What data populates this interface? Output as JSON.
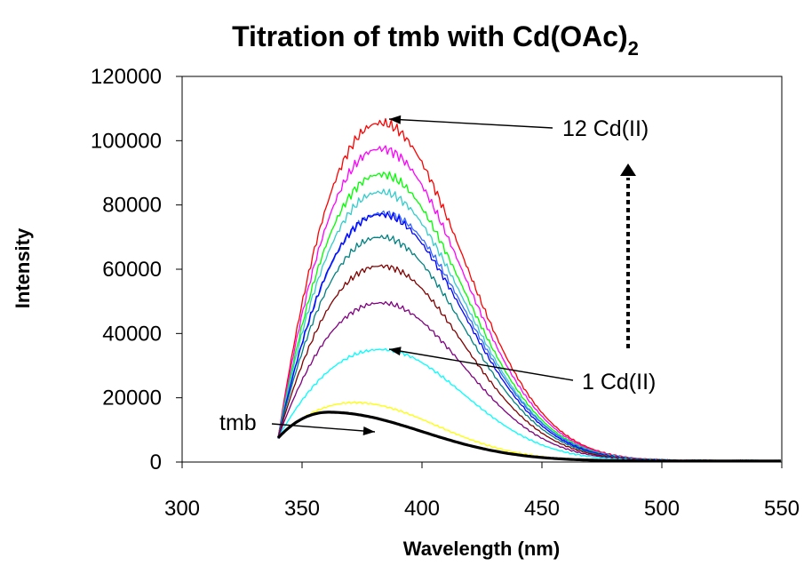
{
  "chart_data": {
    "type": "line",
    "title": "Titration of tmb with Cd(OAc)",
    "title_subscript": "2",
    "xlabel": "Wavelength (nm)",
    "ylabel": "Intensity",
    "xlim": [
      300,
      550
    ],
    "ylim": [
      0,
      120000
    ],
    "x_ticks": [
      "300",
      "350",
      "400",
      "450",
      "500",
      "550"
    ],
    "y_ticks": [
      "0",
      "20000",
      "40000",
      "60000",
      "80000",
      "100000",
      "120000"
    ],
    "grid": false,
    "legend": "none",
    "curve_model": {
      "x_start": 340,
      "x_end": 550,
      "peak_wavelength": 383,
      "start_intensity": 7500,
      "tail_intensity_550": 400
    },
    "series": [
      {
        "color": "#000000",
        "peak": 15500,
        "peak_x": 361,
        "bold": true
      },
      {
        "color": "#ffff00",
        "peak": 18500,
        "peak_x": 372
      },
      {
        "color": "#00ffff",
        "peak": 35000,
        "peak_x": 383
      },
      {
        "color": "#800080",
        "peak": 49500,
        "peak_x": 383
      },
      {
        "color": "#800000",
        "peak": 61000,
        "peak_x": 383
      },
      {
        "color": "#008080",
        "peak": 70000,
        "peak_x": 383
      },
      {
        "color": "#0000ff",
        "peak": 77000,
        "peak_x": 383
      },
      {
        "color": "#3366ff",
        "peak": 77500,
        "peak_x": 384
      },
      {
        "color": "#33cccc",
        "peak": 84000,
        "peak_x": 383
      },
      {
        "color": "#00ff00",
        "peak": 89500,
        "peak_x": 383
      },
      {
        "color": "#ff00ff",
        "peak": 97500,
        "peak_x": 383
      },
      {
        "color": "#ff0000",
        "peak": 105500,
        "peak_x": 383
      }
    ],
    "annotations": [
      {
        "text": "12 Cd(II)",
        "arrow_to": [
          383,
          106000
        ]
      },
      {
        "text": "1 Cd(II)",
        "arrow_to": [
          383,
          35000
        ]
      },
      {
        "text": "tmb",
        "arrow_to": [
          390,
          10000
        ]
      }
    ]
  }
}
